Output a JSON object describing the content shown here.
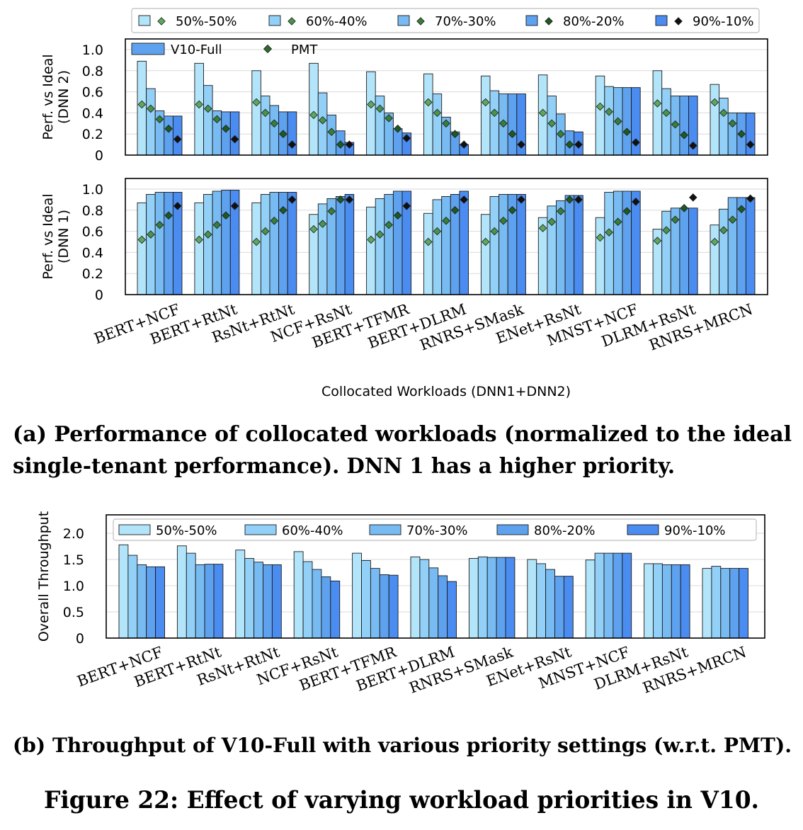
{
  "legend_a": [
    "50%-50%",
    "60%-40%",
    "70%-30%",
    "80%-20%",
    "90%-10%"
  ],
  "legend_a_inner": {
    "bar": "V10-Full",
    "marker": "PMT"
  },
  "colors": [
    "#b3e5fa",
    "#92d0f7",
    "#78bbf2",
    "#5ea2ef",
    "#4a8cf0"
  ],
  "pmt_colors": [
    "#5ea85e",
    "#4a944a",
    "#377f37",
    "#1e5a1e",
    "#111111"
  ],
  "xlabel_a": "Collocated Workloads (DNN1+DNN2)",
  "caption_a_line1": "(a) Performance of collocated workloads (normalized to the ideal",
  "caption_a_line2": "single-tenant performance). DNN 1 has a higher priority.",
  "caption_b": "(b) Throughput of V10-Full with various priority settings (w.r.t. PMT).",
  "figure_caption": "Figure 22: Effect of varying workload priorities in V10.",
  "chart_data": [
    {
      "type": "bar",
      "title": "",
      "ylabel": "Perf. vs Ideal (DNN 2)",
      "ylabel_lines": [
        "Perf. vs Ideal",
        "(DNN 2)"
      ],
      "ylim": [
        0,
        1.0
      ],
      "yticks": [
        "0",
        "0.2",
        "0.4",
        "0.6",
        "0.8",
        "1.0"
      ],
      "grid": true,
      "categories": [
        "BERT+NCF",
        "BERT+RtNt",
        "RsNt+RtNt",
        "NCF+RsNt",
        "BERT+TFMR",
        "BERT+DLRM",
        "RNRS+SMask",
        "ENet+RsNt",
        "MNST+NCF",
        "DLRM+RsNt",
        "RNRS+MRCN"
      ],
      "series": [
        {
          "name": "50%-50%",
          "values": [
            0.89,
            0.87,
            0.8,
            0.87,
            0.79,
            0.77,
            0.75,
            0.76,
            0.75,
            0.8,
            0.67
          ]
        },
        {
          "name": "60%-40%",
          "values": [
            0.63,
            0.66,
            0.56,
            0.59,
            0.56,
            0.58,
            0.61,
            0.56,
            0.65,
            0.63,
            0.54
          ]
        },
        {
          "name": "70%-30%",
          "values": [
            0.42,
            0.42,
            0.47,
            0.38,
            0.4,
            0.36,
            0.58,
            0.39,
            0.64,
            0.56,
            0.4
          ]
        },
        {
          "name": "80%-20%",
          "values": [
            0.37,
            0.41,
            0.41,
            0.23,
            0.25,
            0.22,
            0.58,
            0.23,
            0.64,
            0.56,
            0.4
          ]
        },
        {
          "name": "90%-10%",
          "values": [
            0.37,
            0.41,
            0.41,
            0.12,
            0.21,
            0.1,
            0.58,
            0.22,
            0.64,
            0.56,
            0.4
          ]
        }
      ],
      "pmt_series": [
        {
          "name": "50%-50%",
          "values": [
            0.48,
            0.48,
            0.5,
            0.38,
            0.48,
            0.5,
            0.5,
            0.4,
            0.46,
            0.49,
            0.5
          ]
        },
        {
          "name": "60%-40%",
          "values": [
            0.44,
            0.44,
            0.4,
            0.33,
            0.44,
            0.4,
            0.4,
            0.3,
            0.41,
            0.4,
            0.4
          ]
        },
        {
          "name": "70%-30%",
          "values": [
            0.34,
            0.34,
            0.3,
            0.22,
            0.35,
            0.3,
            0.3,
            0.2,
            0.32,
            0.29,
            0.3
          ]
        },
        {
          "name": "80%-20%",
          "values": [
            0.25,
            0.25,
            0.2,
            0.1,
            0.25,
            0.2,
            0.2,
            0.1,
            0.22,
            0.19,
            0.2
          ]
        },
        {
          "name": "90%-10%",
          "values": [
            0.15,
            0.15,
            0.1,
            0.1,
            0.16,
            0.1,
            0.1,
            0.1,
            0.12,
            0.09,
            0.1
          ]
        }
      ]
    },
    {
      "type": "bar",
      "title": "",
      "ylabel": "Perf. vs Ideal (DNN 1)",
      "ylabel_lines": [
        "Perf. vs Ideal",
        "(DNN 1)"
      ],
      "ylim": [
        0,
        1.0
      ],
      "yticks": [
        "0",
        "0.2",
        "0.4",
        "0.6",
        "0.8",
        "1.0"
      ],
      "grid": true,
      "categories": [
        "BERT+NCF",
        "BERT+RtNt",
        "RsNt+RtNt",
        "NCF+RsNt",
        "BERT+TFMR",
        "BERT+DLRM",
        "RNRS+SMask",
        "ENet+RsNt",
        "MNST+NCF",
        "DLRM+RsNt",
        "RNRS+MRCN"
      ],
      "series": [
        {
          "name": "50%-50%",
          "values": [
            0.87,
            0.87,
            0.87,
            0.76,
            0.83,
            0.77,
            0.76,
            0.73,
            0.73,
            0.62,
            0.66
          ]
        },
        {
          "name": "60%-40%",
          "values": [
            0.95,
            0.95,
            0.95,
            0.86,
            0.91,
            0.9,
            0.93,
            0.84,
            0.97,
            0.79,
            0.81
          ]
        },
        {
          "name": "70%-30%",
          "values": [
            0.97,
            0.98,
            0.97,
            0.91,
            0.95,
            0.93,
            0.95,
            0.89,
            0.98,
            0.82,
            0.92
          ]
        },
        {
          "name": "80%-20%",
          "values": [
            0.97,
            0.99,
            0.97,
            0.93,
            0.98,
            0.95,
            0.95,
            0.94,
            0.98,
            0.82,
            0.92
          ]
        },
        {
          "name": "90%-10%",
          "values": [
            0.97,
            0.99,
            0.97,
            0.95,
            0.98,
            0.98,
            0.95,
            0.94,
            0.98,
            0.82,
            0.92
          ]
        }
      ],
      "pmt_series": [
        {
          "name": "50%-50%",
          "values": [
            0.52,
            0.52,
            0.5,
            0.62,
            0.52,
            0.5,
            0.5,
            0.63,
            0.54,
            0.51,
            0.5
          ]
        },
        {
          "name": "60%-40%",
          "values": [
            0.57,
            0.57,
            0.6,
            0.67,
            0.57,
            0.6,
            0.6,
            0.69,
            0.59,
            0.61,
            0.61
          ]
        },
        {
          "name": "70%-30%",
          "values": [
            0.66,
            0.66,
            0.7,
            0.79,
            0.66,
            0.7,
            0.7,
            0.79,
            0.69,
            0.71,
            0.71
          ]
        },
        {
          "name": "80%-20%",
          "values": [
            0.75,
            0.75,
            0.8,
            0.9,
            0.75,
            0.8,
            0.8,
            0.9,
            0.79,
            0.82,
            0.81
          ]
        },
        {
          "name": "90%-10%",
          "values": [
            0.84,
            0.84,
            0.9,
            0.9,
            0.84,
            0.9,
            0.9,
            0.9,
            0.88,
            0.92,
            0.91
          ]
        }
      ]
    },
    {
      "type": "bar",
      "title": "",
      "ylabel": "Overall Throughput",
      "ylabel_lines": [
        "Overall Throughput"
      ],
      "ylim": [
        0,
        2.25
      ],
      "yticks": [
        "0",
        "0.5",
        "1.0",
        "1.5",
        "2.0"
      ],
      "grid": true,
      "categories": [
        "BERT+NCF",
        "BERT+RtNt",
        "RsNt+RtNt",
        "NCF+RsNt",
        "BERT+TFMR",
        "BERT+DLRM",
        "RNRS+SMask",
        "ENet+RsNt",
        "MNST+NCF",
        "DLRM+RsNt",
        "RNRS+MRCN"
      ],
      "series": [
        {
          "name": "50%-50%",
          "values": [
            1.78,
            1.76,
            1.68,
            1.65,
            1.62,
            1.55,
            1.52,
            1.5,
            1.49,
            1.42,
            1.33
          ]
        },
        {
          "name": "60%-40%",
          "values": [
            1.58,
            1.62,
            1.52,
            1.46,
            1.48,
            1.5,
            1.55,
            1.42,
            1.62,
            1.42,
            1.37
          ]
        },
        {
          "name": "70%-30%",
          "values": [
            1.4,
            1.4,
            1.45,
            1.31,
            1.33,
            1.34,
            1.54,
            1.31,
            1.62,
            1.4,
            1.33
          ]
        },
        {
          "name": "80%-20%",
          "values": [
            1.36,
            1.41,
            1.4,
            1.17,
            1.21,
            1.19,
            1.54,
            1.18,
            1.62,
            1.4,
            1.33
          ]
        },
        {
          "name": "90%-10%",
          "values": [
            1.36,
            1.41,
            1.4,
            1.09,
            1.2,
            1.08,
            1.54,
            1.18,
            1.62,
            1.4,
            1.33
          ]
        }
      ]
    }
  ]
}
